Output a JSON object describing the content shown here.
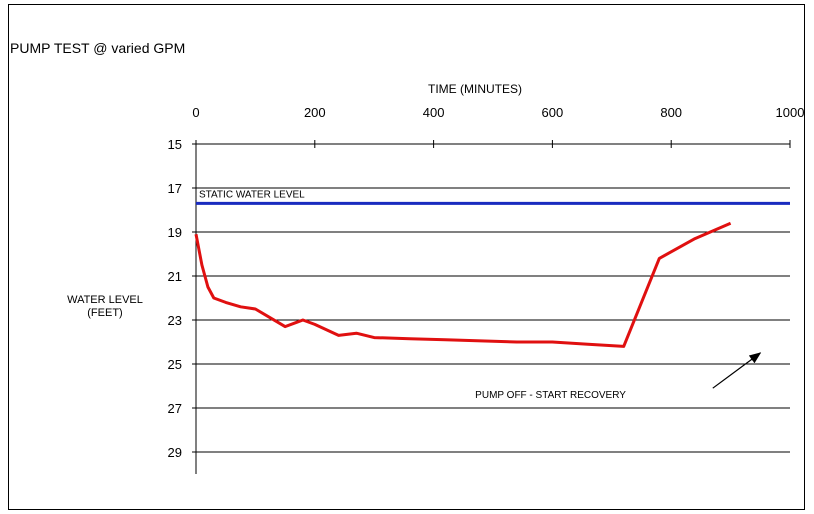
{
  "chart_data": {
    "type": "line",
    "title": "PUMP TEST @ varied GPM",
    "xlabel": "TIME (MINUTES)",
    "ylabel": "WATER LEVEL\n(FEET)",
    "xlim": [
      0,
      1000
    ],
    "ylim": [
      15,
      30
    ],
    "y_inverted": true,
    "x_ticks": [
      0,
      200,
      400,
      600,
      800,
      1000
    ],
    "y_ticks": [
      15,
      17,
      19,
      21,
      23,
      25,
      27,
      29
    ],
    "x_axis_position": "top",
    "grid": "horizontal",
    "colors": {
      "drawdown": "#e01010",
      "static": "#1a2bbf",
      "grid": "#000000"
    },
    "series": [
      {
        "x": [
          0,
          10,
          20,
          30,
          50,
          75,
          100,
          125,
          150,
          170,
          180,
          200,
          240,
          270,
          300,
          360,
          420,
          480,
          540,
          600,
          660,
          720,
          780,
          840,
          900
        ],
        "y": [
          19.1,
          20.5,
          21.5,
          22.0,
          22.2,
          22.4,
          22.5,
          22.9,
          23.3,
          23.1,
          23.0,
          23.2,
          23.7,
          23.6,
          23.8,
          23.85,
          23.9,
          23.95,
          24.0,
          24.0,
          24.1,
          24.2,
          20.2,
          19.3,
          18.6
        ]
      },
      {
        "x": [
          0,
          1000
        ],
        "y": [
          17.7,
          17.7
        ]
      }
    ],
    "annotations": [
      {
        "text": "STATIC WATER LEVEL",
        "x": 5,
        "y": 17.25
      },
      {
        "text": "PUMP OFF - START RECOVERY",
        "x": 470,
        "y": 26.4,
        "arrow_to": [
          950,
          24.5
        ]
      }
    ]
  }
}
